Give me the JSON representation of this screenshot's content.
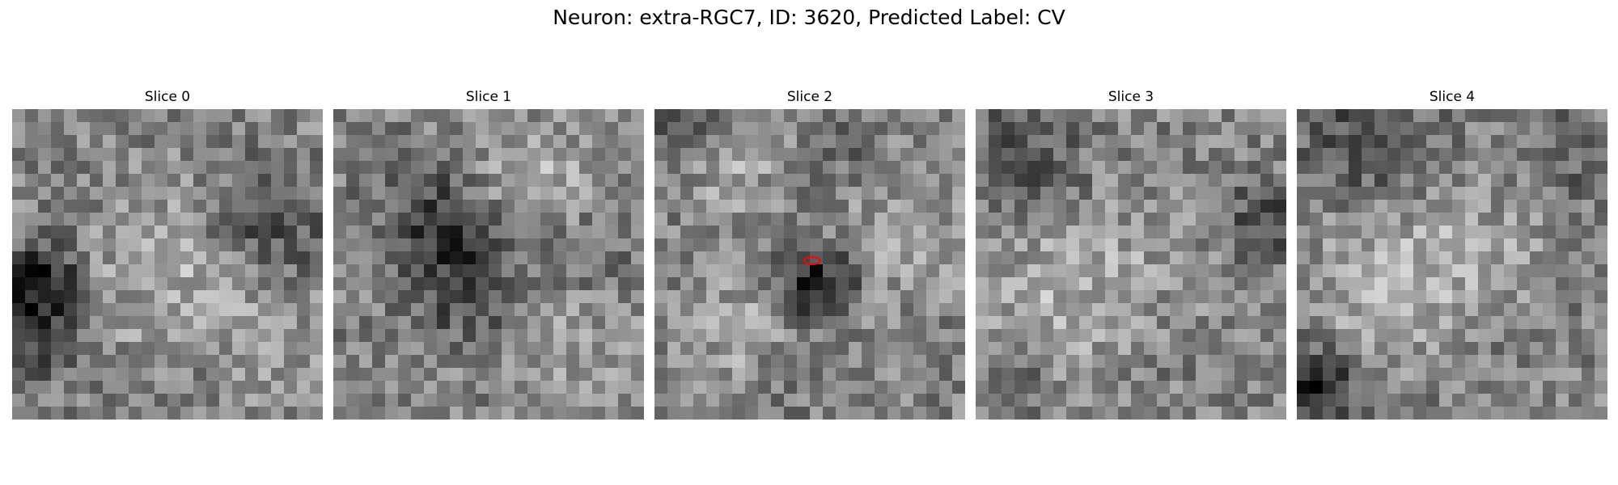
{
  "figure": {
    "title": "Neuron: extra-RGC7, ID: 3620, Predicted Label: CV",
    "colormap": "gray",
    "marker_color": "#ff0000"
  },
  "slices": [
    {
      "title": "Slice 0",
      "marked": false
    },
    {
      "title": "Slice 1",
      "marked": false
    },
    {
      "title": "Slice 2",
      "marked": true
    },
    {
      "title": "Slice 3",
      "marked": false
    },
    {
      "title": "Slice 4",
      "marked": false
    }
  ]
}
